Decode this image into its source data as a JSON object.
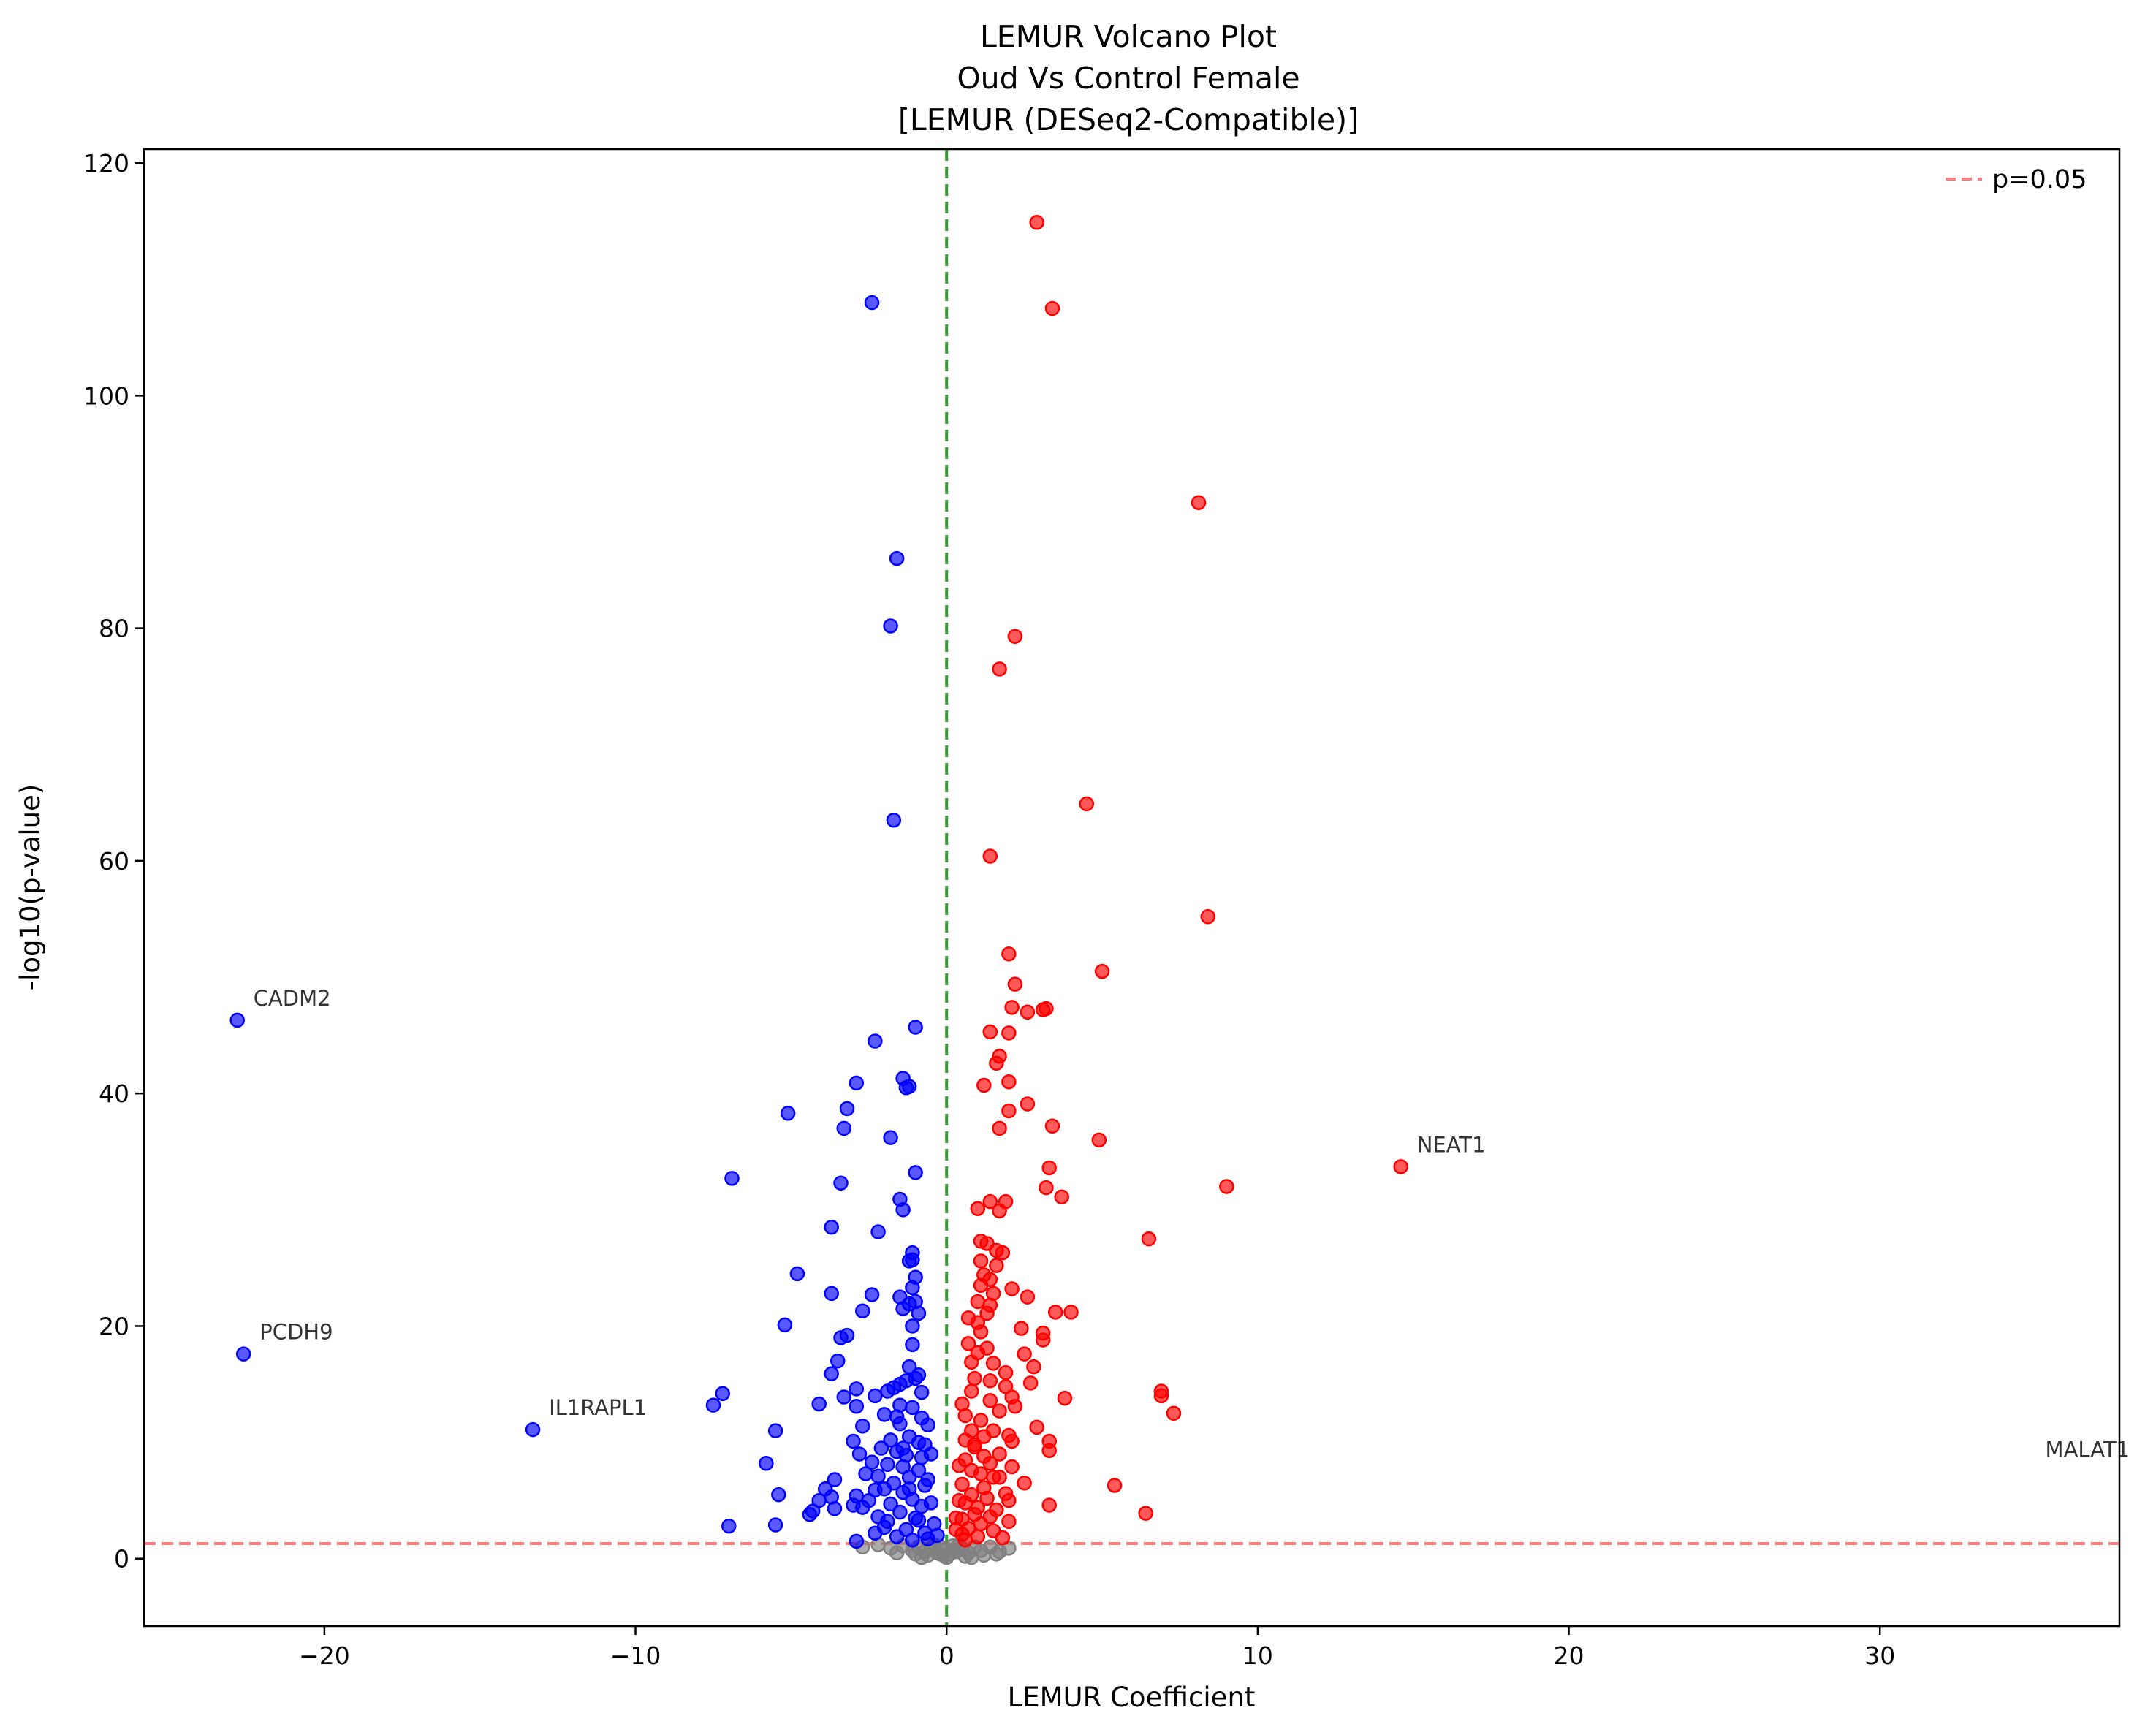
{
  "chart_data": {
    "type": "scatter",
    "title_lines": [
      "LEMUR Volcano Plot",
      "Oud Vs Control Female",
      "[LEMUR (DESeq2-Compatible)]"
    ],
    "xlabel": "LEMUR Coefficient",
    "ylabel": "-log10(p-value)",
    "xlim": [
      -25.8,
      37.7
    ],
    "ylim": [
      -5.8,
      121.2
    ],
    "xticks": [
      -20,
      -10,
      0,
      10,
      20,
      30
    ],
    "xtick_labels": [
      "−20",
      "−10",
      "0",
      "10",
      "20",
      "30"
    ],
    "yticks": [
      0,
      20,
      40,
      60,
      80,
      100,
      120
    ],
    "ytick_labels": [
      "0",
      "20",
      "40",
      "60",
      "80",
      "100",
      "120"
    ],
    "grid": false,
    "legend": {
      "position": "top-right",
      "entries": [
        "p=0.05"
      ]
    },
    "reference_lines": {
      "horizontal_y": 1.3,
      "horizontal_color": "#ff6666",
      "vertical_x": 0,
      "vertical_color": "#2ca02c"
    },
    "colors": {
      "down": "#0000ff",
      "up": "#ff0000",
      "nonsig": "#808080"
    },
    "series": [
      {
        "group": "down",
        "points": [
          [
            -22.8,
            46.3
          ],
          [
            -22.6,
            17.6
          ],
          [
            -13.3,
            11.1
          ],
          [
            -2.4,
            108
          ],
          [
            -1.6,
            86
          ],
          [
            -1.8,
            80.2
          ],
          [
            -1.7,
            63.5
          ],
          [
            -1.0,
            45.7
          ],
          [
            -2.3,
            44.5
          ],
          [
            -1.4,
            41.3
          ],
          [
            -2.9,
            40.9
          ],
          [
            -1.2,
            40.6
          ],
          [
            -1.3,
            40.5
          ],
          [
            -3.2,
            38.7
          ],
          [
            -5.1,
            38.3
          ],
          [
            -3.3,
            37.0
          ],
          [
            -1.8,
            36.2
          ],
          [
            -1.0,
            33.2
          ],
          [
            -6.9,
            32.7
          ],
          [
            -3.4,
            32.3
          ],
          [
            -1.5,
            30.9
          ],
          [
            -1.4,
            30.0
          ],
          [
            -3.7,
            28.5
          ],
          [
            -2.2,
            28.1
          ],
          [
            -1.1,
            26.3
          ],
          [
            -1.1,
            25.7
          ],
          [
            -1.2,
            25.6
          ],
          [
            -4.8,
            24.5
          ],
          [
            -1.0,
            24.2
          ],
          [
            -1.1,
            23.3
          ],
          [
            -3.7,
            22.8
          ],
          [
            -2.4,
            22.7
          ],
          [
            -1.5,
            22.5
          ],
          [
            -1.0,
            22.1
          ],
          [
            -1.2,
            21.9
          ],
          [
            -2.7,
            21.3
          ],
          [
            -1.4,
            21.5
          ],
          [
            -0.9,
            21.1
          ],
          [
            -5.2,
            20.1
          ],
          [
            -1.1,
            20.0
          ],
          [
            -3.2,
            19.2
          ],
          [
            -3.4,
            19.0
          ],
          [
            -1.1,
            18.4
          ],
          [
            -3.5,
            17.0
          ],
          [
            -1.2,
            16.5
          ],
          [
            -3.7,
            15.9
          ],
          [
            -0.9,
            15.8
          ],
          [
            -1.0,
            15.5
          ],
          [
            -1.3,
            15.3
          ],
          [
            -1.5,
            15.0
          ],
          [
            -1.7,
            14.7
          ],
          [
            -2.9,
            14.6
          ],
          [
            -3.3,
            13.9
          ],
          [
            -7.2,
            14.2
          ],
          [
            -0.8,
            14.3
          ],
          [
            -1.9,
            14.4
          ],
          [
            -2.3,
            14.0
          ],
          [
            -7.5,
            13.2
          ],
          [
            -4.1,
            13.3
          ],
          [
            -2.9,
            13.1
          ],
          [
            -1.5,
            13.2
          ],
          [
            -1.1,
            13.0
          ],
          [
            -1.6,
            12.2
          ],
          [
            -2.0,
            12.4
          ],
          [
            -0.8,
            12.1
          ],
          [
            -2.7,
            11.4
          ],
          [
            -1.5,
            11.6
          ],
          [
            -5.5,
            11.0
          ],
          [
            -3.0,
            10.1
          ],
          [
            -1.2,
            10.5
          ],
          [
            -1.8,
            10.2
          ],
          [
            -0.9,
            10.0
          ],
          [
            -0.7,
            9.8
          ],
          [
            -2.1,
            9.5
          ],
          [
            -2.8,
            9.0
          ],
          [
            -1.6,
            9.2
          ],
          [
            -1.3,
            8.9
          ],
          [
            -0.8,
            8.7
          ],
          [
            -5.8,
            8.2
          ],
          [
            -2.4,
            8.3
          ],
          [
            -1.9,
            8.1
          ],
          [
            -1.4,
            7.9
          ],
          [
            -0.9,
            7.6
          ],
          [
            -2.6,
            7.3
          ],
          [
            -2.2,
            7.1
          ],
          [
            -1.2,
            7.0
          ],
          [
            -3.6,
            6.8
          ],
          [
            -1.7,
            6.5
          ],
          [
            -0.7,
            6.3
          ],
          [
            -3.9,
            6.0
          ],
          [
            -2.3,
            5.9
          ],
          [
            -1.4,
            5.7
          ],
          [
            -5.4,
            5.5
          ],
          [
            -3.7,
            5.3
          ],
          [
            -2.9,
            5.4
          ],
          [
            -1.1,
            5.1
          ],
          [
            -4.1,
            5.0
          ],
          [
            -2.5,
            5.0
          ],
          [
            -3.0,
            4.6
          ],
          [
            -1.8,
            4.7
          ],
          [
            -0.8,
            4.5
          ],
          [
            -3.6,
            4.3
          ],
          [
            -2.7,
            4.4
          ],
          [
            -4.3,
            4.1
          ],
          [
            -4.4,
            3.8
          ],
          [
            -1.5,
            4.0
          ],
          [
            -2.2,
            3.6
          ],
          [
            -0.9,
            3.3
          ],
          [
            -7.0,
            2.8
          ],
          [
            -5.5,
            2.9
          ],
          [
            -2.0,
            2.7
          ],
          [
            -1.3,
            2.5
          ],
          [
            -0.7,
            2.2
          ],
          [
            -2.3,
            2.2
          ],
          [
            -1.6,
            1.9
          ],
          [
            -2.9,
            1.5
          ],
          [
            -0.6,
            1.7
          ],
          [
            -1.1,
            1.6
          ],
          [
            -0.5,
            4.8
          ],
          [
            -0.6,
            6.8
          ],
          [
            -0.4,
            3.0
          ],
          [
            -0.5,
            9.0
          ],
          [
            -0.3,
            2.0
          ],
          [
            -1.9,
            3.2
          ],
          [
            -1.0,
            3.5
          ],
          [
            -1.2,
            6.0
          ],
          [
            -0.6,
            11.5
          ],
          [
            -1.4,
            9.5
          ],
          [
            -2.0,
            6.0
          ]
        ]
      },
      {
        "group": "up",
        "points": [
          [
            2.9,
            114.9
          ],
          [
            3.4,
            107.5
          ],
          [
            8.1,
            90.8
          ],
          [
            2.2,
            79.3
          ],
          [
            1.7,
            76.5
          ],
          [
            4.5,
            64.9
          ],
          [
            1.4,
            60.4
          ],
          [
            8.4,
            55.2
          ],
          [
            2.0,
            52.0
          ],
          [
            5.0,
            50.5
          ],
          [
            2.2,
            49.4
          ],
          [
            2.1,
            47.4
          ],
          [
            3.2,
            47.3
          ],
          [
            3.1,
            47.2
          ],
          [
            2.6,
            47.0
          ],
          [
            1.4,
            45.3
          ],
          [
            2.0,
            45.2
          ],
          [
            1.7,
            43.2
          ],
          [
            1.6,
            42.6
          ],
          [
            1.2,
            40.7
          ],
          [
            2.0,
            41.0
          ],
          [
            2.6,
            39.1
          ],
          [
            2.0,
            38.5
          ],
          [
            3.4,
            37.2
          ],
          [
            1.7,
            37.0
          ],
          [
            4.9,
            36.0
          ],
          [
            14.6,
            33.7
          ],
          [
            3.3,
            33.6
          ],
          [
            9.0,
            32.0
          ],
          [
            3.2,
            31.9
          ],
          [
            3.7,
            31.1
          ],
          [
            1.4,
            30.7
          ],
          [
            1.9,
            30.7
          ],
          [
            1.0,
            30.1
          ],
          [
            1.7,
            29.9
          ],
          [
            6.5,
            27.5
          ],
          [
            1.1,
            27.3
          ],
          [
            1.3,
            27.1
          ],
          [
            1.6,
            26.5
          ],
          [
            1.8,
            26.3
          ],
          [
            1.1,
            25.6
          ],
          [
            1.6,
            25.2
          ],
          [
            1.2,
            24.4
          ],
          [
            1.4,
            24.0
          ],
          [
            1.1,
            23.5
          ],
          [
            2.1,
            23.2
          ],
          [
            1.5,
            22.8
          ],
          [
            2.6,
            22.5
          ],
          [
            1.0,
            22.1
          ],
          [
            1.4,
            21.8
          ],
          [
            3.5,
            21.2
          ],
          [
            4.0,
            21.2
          ],
          [
            1.3,
            21.1
          ],
          [
            0.7,
            20.7
          ],
          [
            1.0,
            20.3
          ],
          [
            2.4,
            19.8
          ],
          [
            1.1,
            19.5
          ],
          [
            3.1,
            19.4
          ],
          [
            3.1,
            18.8
          ],
          [
            0.7,
            18.5
          ],
          [
            1.3,
            18.1
          ],
          [
            1.0,
            17.7
          ],
          [
            2.5,
            17.6
          ],
          [
            0.8,
            16.9
          ],
          [
            1.5,
            16.8
          ],
          [
            2.8,
            16.5
          ],
          [
            1.9,
            16.0
          ],
          [
            0.9,
            15.5
          ],
          [
            1.4,
            15.3
          ],
          [
            2.7,
            15.1
          ],
          [
            1.9,
            14.8
          ],
          [
            0.8,
            14.4
          ],
          [
            6.9,
            14.4
          ],
          [
            6.9,
            14.0
          ],
          [
            2.1,
            13.9
          ],
          [
            3.8,
            13.8
          ],
          [
            1.4,
            13.6
          ],
          [
            0.5,
            13.3
          ],
          [
            2.2,
            13.1
          ],
          [
            1.7,
            12.7
          ],
          [
            7.3,
            12.5
          ],
          [
            0.6,
            12.3
          ],
          [
            1.1,
            11.9
          ],
          [
            2.9,
            11.3
          ],
          [
            1.5,
            11.0
          ],
          [
            2.0,
            10.6
          ],
          [
            1.2,
            10.5
          ],
          [
            3.3,
            10.1
          ],
          [
            0.6,
            10.2
          ],
          [
            2.1,
            10.1
          ],
          [
            0.9,
            9.6
          ],
          [
            3.3,
            9.3
          ],
          [
            1.7,
            9.0
          ],
          [
            1.2,
            8.8
          ],
          [
            0.6,
            8.5
          ],
          [
            1.4,
            8.2
          ],
          [
            2.1,
            7.9
          ],
          [
            0.8,
            7.6
          ],
          [
            1.1,
            7.3
          ],
          [
            1.7,
            7.0
          ],
          [
            5.4,
            6.3
          ],
          [
            2.5,
            6.5
          ],
          [
            0.5,
            6.4
          ],
          [
            1.2,
            6.1
          ],
          [
            1.9,
            5.6
          ],
          [
            0.8,
            5.5
          ],
          [
            1.3,
            5.2
          ],
          [
            2.0,
            5.0
          ],
          [
            3.3,
            4.6
          ],
          [
            0.6,
            4.8
          ],
          [
            1.0,
            4.4
          ],
          [
            1.6,
            4.2
          ],
          [
            6.4,
            3.9
          ],
          [
            0.9,
            3.8
          ],
          [
            1.4,
            3.6
          ],
          [
            0.5,
            3.4
          ],
          [
            2.0,
            3.2
          ],
          [
            1.1,
            3.0
          ],
          [
            0.7,
            2.6
          ],
          [
            1.5,
            2.4
          ],
          [
            0.5,
            2.1
          ],
          [
            1.0,
            1.9
          ],
          [
            1.8,
            1.8
          ],
          [
            0.6,
            1.6
          ],
          [
            0.4,
            5.0
          ],
          [
            0.3,
            2.5
          ],
          [
            0.4,
            8.0
          ],
          [
            0.8,
            11.0
          ],
          [
            1.5,
            7.0
          ],
          [
            0.3,
            3.5
          ],
          [
            0.9,
            9.8
          ]
        ]
      },
      {
        "group": "nonsig",
        "points": [
          [
            -2.7,
            1.0
          ],
          [
            -2.2,
            1.2
          ],
          [
            -1.8,
            0.9
          ],
          [
            -1.4,
            1.1
          ],
          [
            -1.1,
            0.7
          ],
          [
            -0.9,
            1.0
          ],
          [
            -0.7,
            0.6
          ],
          [
            -0.5,
            0.9
          ],
          [
            -0.3,
            0.5
          ],
          [
            -0.2,
            1.0
          ],
          [
            -0.1,
            0.3
          ],
          [
            0.0,
            0.8
          ],
          [
            0.1,
            0.4
          ],
          [
            0.2,
            1.1
          ],
          [
            0.3,
            0.6
          ],
          [
            0.5,
            0.9
          ],
          [
            0.7,
            0.5
          ],
          [
            0.9,
            1.0
          ],
          [
            1.1,
            0.7
          ],
          [
            1.4,
            1.0
          ],
          [
            1.7,
            0.6
          ],
          [
            2.0,
            0.9
          ],
          [
            -0.4,
            1.2
          ],
          [
            0.4,
            1.2
          ],
          [
            -0.6,
            0.3
          ],
          [
            0.6,
            0.2
          ],
          [
            -1.0,
            0.4
          ],
          [
            1.2,
            0.3
          ],
          [
            -0.8,
            0.1
          ],
          [
            0.8,
            0.1
          ],
          [
            0.0,
            0.1
          ],
          [
            -1.6,
            0.5
          ],
          [
            1.6,
            0.4
          ],
          [
            0.2,
            0.7
          ],
          [
            -0.2,
            0.4
          ]
        ]
      }
    ],
    "annotations": [
      {
        "text": "CADM2",
        "x": -22.8,
        "y": 46.3
      },
      {
        "text": "PCDH9",
        "x": -22.6,
        "y": 17.6
      },
      {
        "text": "IL1RAPL1",
        "x": -13.3,
        "y": 11.1
      },
      {
        "text": "NEAT1",
        "x": 14.6,
        "y": 33.7
      },
      {
        "text": "MALAT1",
        "x": 34.8,
        "y": 7.5
      }
    ]
  }
}
